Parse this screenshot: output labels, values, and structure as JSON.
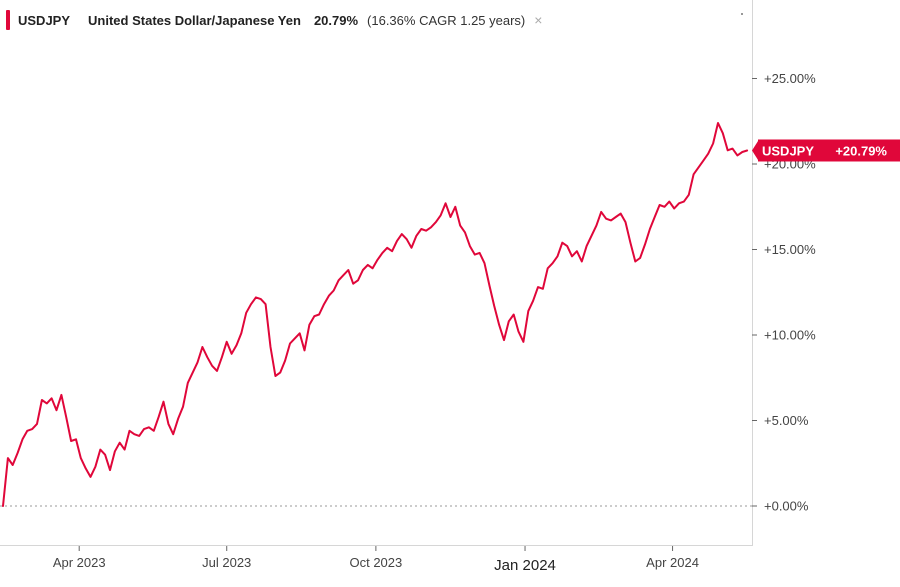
{
  "legend": {
    "symbol": "USDJPY",
    "name": "United States Dollar/Japanese Yen",
    "return_label": "20.79%",
    "cagr_label": "(16.36% CAGR 1.25 years)",
    "close_glyph": "×"
  },
  "colors": {
    "series": "#e0073a",
    "badge_text": "#ffffff"
  },
  "chart_data": {
    "type": "line",
    "title": "",
    "series": [
      {
        "name": "USDJPY",
        "x": [
          0,
          3,
          6,
          9,
          12,
          15,
          18,
          21,
          24,
          27,
          30,
          33,
          36,
          39,
          42,
          45,
          48,
          51,
          54,
          57,
          60,
          63,
          66,
          69,
          72,
          75,
          78,
          81,
          84,
          87,
          90,
          93,
          96,
          99,
          102,
          105,
          108,
          111,
          114,
          117,
          120,
          123,
          126,
          129,
          132,
          135,
          138,
          141,
          144,
          147,
          150,
          153,
          156,
          159,
          162,
          165,
          168,
          171,
          174,
          177,
          180,
          183,
          186,
          189,
          192,
          195,
          198,
          201,
          204,
          207,
          210,
          213,
          216,
          219,
          222,
          225,
          228,
          231,
          234,
          237,
          240,
          243,
          246,
          249,
          252,
          255,
          258,
          261,
          264,
          267,
          270,
          273,
          276,
          279,
          282,
          285,
          288,
          291,
          294,
          297,
          300,
          303,
          306,
          309,
          312,
          315,
          318,
          321,
          324,
          327,
          330,
          333,
          336,
          339,
          342,
          345,
          348,
          351,
          354,
          357,
          360,
          363,
          366,
          369,
          372,
          375,
          378,
          381,
          384,
          387,
          390,
          393,
          396,
          399,
          402,
          405,
          408,
          411,
          414,
          417,
          420,
          423,
          426,
          429,
          432,
          435,
          438,
          441,
          444,
          447,
          450,
          453,
          456,
          459
        ],
        "values": [
          0.0,
          2.8,
          2.4,
          3.1,
          3.9,
          4.4,
          4.5,
          4.8,
          6.2,
          6.0,
          6.3,
          5.6,
          6.5,
          5.2,
          3.8,
          3.9,
          2.8,
          2.2,
          1.7,
          2.3,
          3.3,
          3.0,
          2.1,
          3.2,
          3.7,
          3.3,
          4.4,
          4.2,
          4.1,
          4.5,
          4.6,
          4.4,
          5.2,
          6.1,
          4.8,
          4.2,
          5.1,
          5.8,
          7.2,
          7.8,
          8.4,
          9.3,
          8.7,
          8.2,
          7.9,
          8.7,
          9.6,
          8.9,
          9.4,
          10.1,
          11.3,
          11.8,
          12.2,
          12.1,
          11.8,
          9.3,
          7.6,
          7.8,
          8.5,
          9.5,
          9.8,
          10.1,
          9.1,
          10.6,
          11.1,
          11.2,
          11.8,
          12.3,
          12.6,
          13.2,
          13.5,
          13.8,
          13.0,
          13.2,
          13.8,
          14.1,
          13.9,
          14.4,
          14.8,
          15.1,
          14.9,
          15.5,
          15.9,
          15.6,
          15.1,
          15.8,
          16.2,
          16.1,
          16.3,
          16.6,
          17.0,
          17.7,
          16.9,
          17.5,
          16.4,
          16.0,
          15.2,
          14.7,
          14.8,
          14.2,
          12.9,
          11.7,
          10.6,
          9.7,
          10.8,
          11.2,
          10.2,
          9.6,
          11.4,
          12.0,
          12.8,
          12.7,
          13.9,
          14.2,
          14.6,
          15.4,
          15.2,
          14.6,
          14.9,
          14.3,
          15.2,
          15.8,
          16.4,
          17.2,
          16.8,
          16.7,
          16.9,
          17.1,
          16.6,
          15.4,
          14.3,
          14.5,
          15.3,
          16.2,
          16.9,
          17.6,
          17.5,
          17.8,
          17.4,
          17.7,
          17.8,
          18.2,
          19.4,
          19.8,
          20.2,
          20.6,
          21.2,
          22.4,
          21.8,
          20.8,
          20.9,
          20.5,
          20.7,
          20.79
        ]
      }
    ],
    "ylim": [
      0,
      28
    ],
    "yticks": [
      0,
      5,
      10,
      15,
      20,
      25
    ],
    "ytick_labels": [
      "+0.00%",
      "+5.00%",
      "+10.00%",
      "+15.00%",
      "+20.00%",
      "+25.00%"
    ],
    "xlim": [
      0,
      462
    ],
    "xticks": [
      {
        "day": 47,
        "label": "Apr 2023",
        "major": false
      },
      {
        "day": 138,
        "label": "Jul 2023",
        "major": false
      },
      {
        "day": 230,
        "label": "Oct 2023",
        "major": false
      },
      {
        "day": 322,
        "label": "Jan 2024",
        "major": true
      },
      {
        "day": 413,
        "label": "Apr 2024",
        "major": false
      }
    ],
    "last_value_badge": {
      "symbol": "USDJPY",
      "value_label": "+20.79%"
    },
    "grid": false
  }
}
